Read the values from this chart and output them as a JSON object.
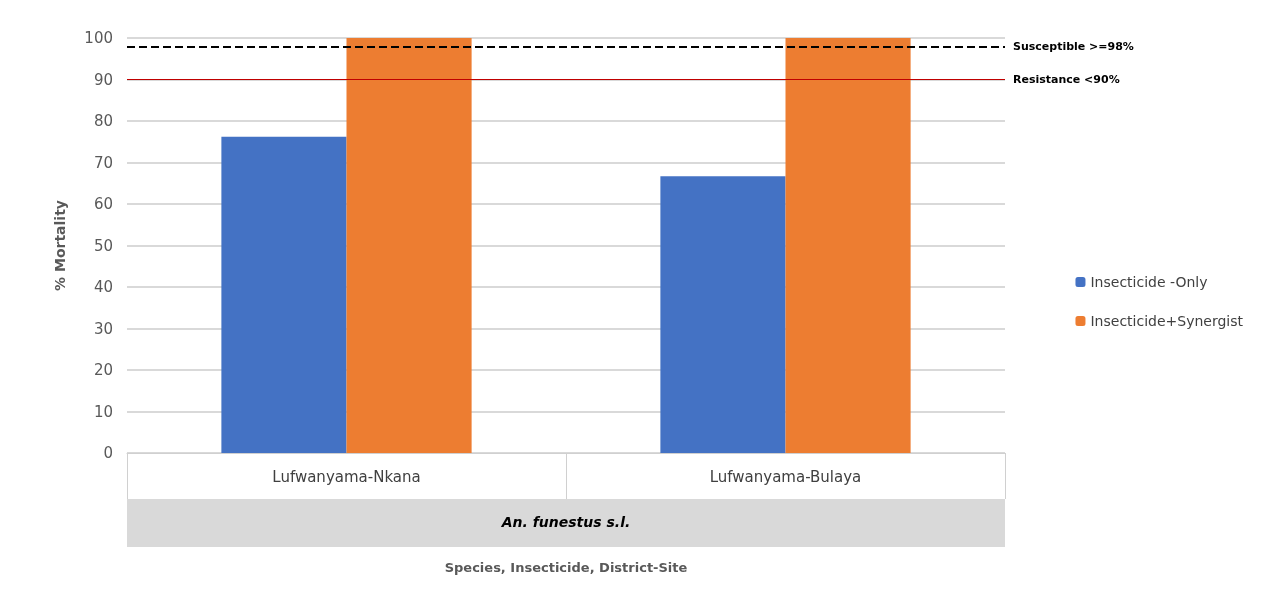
{
  "chart_data": {
    "type": "bar",
    "categories": [
      "Lufwanyama-Nkana",
      "Lufwanyama-Bulaya"
    ],
    "series": [
      {
        "name": "Insecticide -Only",
        "color": "#4472c4",
        "values": [
          76.2,
          66.7
        ]
      },
      {
        "name": "Insecticide+Synergist",
        "color": "#ed7d31",
        "values": [
          100,
          100
        ]
      }
    ],
    "ylabel": "% Mortality",
    "annotations": [
      "An. funestus s.l.",
      "Species, Insecticide, District-Site"
    ],
    "ylim": [
      0,
      100
    ],
    "yticks": [
      0,
      10,
      20,
      30,
      40,
      50,
      60,
      70,
      80,
      90,
      100
    ],
    "grid": "y",
    "legend": "right",
    "ref_lines": [
      {
        "axis": "y",
        "value": 98,
        "label": "Susceptible >=98%",
        "color": "#000000",
        "line_style": "dashed"
      },
      {
        "axis": "y",
        "value": 90,
        "label": "Resistance <90%",
        "color": "#c00000",
        "line_style": "solid"
      }
    ]
  }
}
